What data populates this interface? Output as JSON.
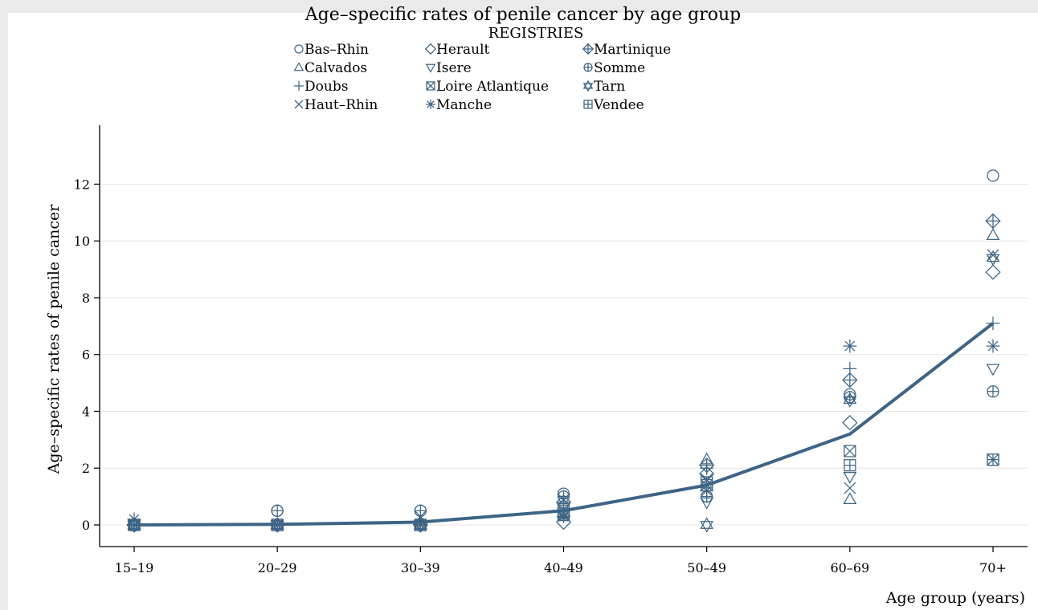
{
  "chart_data": {
    "type": "scatter",
    "title": "Age–specific rates of penile cancer by age group",
    "xlabel": "Age group (years)",
    "ylabel": "Age–specific rates of penile cancer",
    "categories": [
      "15–19",
      "20–29",
      "30–39",
      "40–49",
      "50–49",
      "60–69",
      "70+"
    ],
    "yticks": [
      0,
      2,
      4,
      6,
      8,
      10,
      12
    ],
    "ylim": [
      -0.5,
      14
    ],
    "grid": true,
    "legend": {
      "title": "REGISTRIES",
      "placement": "top"
    },
    "overall": {
      "name": "",
      "values": [
        0.0,
        0.02,
        0.1,
        0.5,
        1.4,
        3.2,
        7.1
      ]
    },
    "series": [
      {
        "name": "Bas–Rhin",
        "marker": "circle",
        "values": [
          0.0,
          0.5,
          0.5,
          1.1,
          1.0,
          4.6,
          12.3
        ]
      },
      {
        "name": "Calvados",
        "marker": "triangle",
        "values": [
          0.0,
          0.0,
          0.0,
          0.3,
          2.3,
          0.9,
          10.2
        ]
      },
      {
        "name": "Doubs",
        "marker": "plus",
        "values": [
          0.0,
          0.0,
          0.0,
          0.5,
          2.0,
          5.5,
          7.1
        ]
      },
      {
        "name": "Haut–Rhin",
        "marker": "x",
        "values": [
          0.0,
          0.0,
          0.3,
          0.9,
          1.6,
          1.3,
          9.5
        ]
      },
      {
        "name": "Herault",
        "marker": "diamond",
        "values": [
          0.0,
          0.0,
          0.0,
          0.1,
          1.8,
          3.6,
          8.9
        ]
      },
      {
        "name": "Isere",
        "marker": "triangle-down",
        "values": [
          0.0,
          0.0,
          0.0,
          0.6,
          0.8,
          1.7,
          5.5
        ]
      },
      {
        "name": "Loire Atlantique",
        "marker": "square-x",
        "values": [
          0.0,
          0.0,
          0.0,
          0.4,
          1.4,
          2.6,
          2.3
        ]
      },
      {
        "name": "Manche",
        "marker": "asterisk",
        "values": [
          0.2,
          0.0,
          0.0,
          0.3,
          1.2,
          6.3,
          6.3
        ]
      },
      {
        "name": "Martinique",
        "marker": "diamond-plus",
        "values": [
          0.0,
          0.0,
          0.0,
          0.8,
          2.1,
          5.1,
          10.7
        ]
      },
      {
        "name": "Somme",
        "marker": "circle-plus",
        "values": [
          0.0,
          0.5,
          0.5,
          1.0,
          1.0,
          4.5,
          4.7
        ]
      },
      {
        "name": "Tarn",
        "marker": "star",
        "values": [
          0.0,
          0.0,
          0.0,
          0.4,
          0.0,
          4.4,
          9.4
        ]
      },
      {
        "name": "Vendee",
        "marker": "square-plus",
        "values": [
          0.0,
          0.0,
          0.0,
          0.5,
          1.5,
          2.1,
          2.3
        ]
      }
    ],
    "colors": {
      "marker": "#3e6485",
      "line": "#3e6485",
      "axis": "#000000",
      "grid": "#e6e6e6"
    }
  }
}
